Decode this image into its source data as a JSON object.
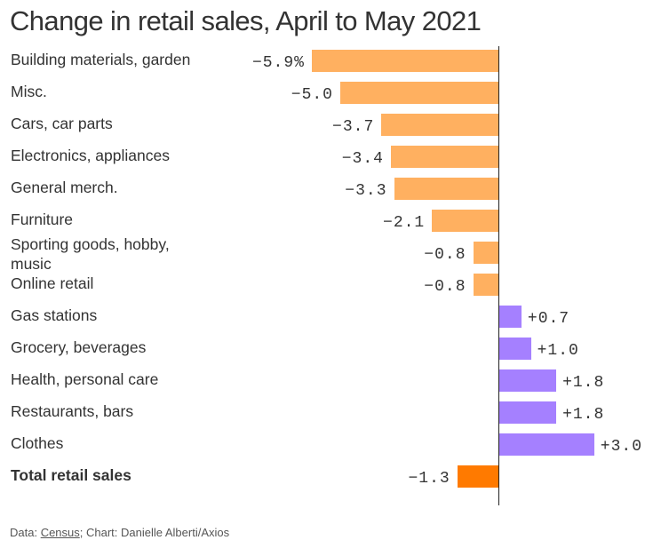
{
  "chart_data": {
    "type": "bar",
    "orientation": "horizontal",
    "title": "Change in retail sales, April to May 2021",
    "categories": [
      "Building materials, garden",
      "Misc.",
      "Cars, car parts",
      "Electronics, appliances",
      "General merch.",
      "Furniture",
      "Sporting goods, hobby, music",
      "Online retail",
      "Gas stations",
      "Grocery, beverages",
      "Health, personal care",
      "Restaurants, bars",
      "Clothes",
      "Total retail sales"
    ],
    "values": [
      -5.9,
      -5.0,
      -3.7,
      -3.4,
      -3.3,
      -2.1,
      -0.8,
      -0.8,
      0.7,
      1.0,
      1.8,
      1.8,
      3.0,
      -1.3
    ],
    "value_labels": [
      "−5.9%",
      "−5.0",
      "−3.7",
      "−3.4",
      "−3.3",
      "−2.1",
      "−0.8",
      "−0.8",
      "+0.7",
      "+1.0",
      "+1.8",
      "+1.8",
      "+3.0",
      "−1.3"
    ],
    "xlabel": "",
    "ylabel": "",
    "xlim": [
      -5.9,
      3.0
    ],
    "colors": {
      "negative": "#ffb060",
      "positive": "#a580ff",
      "total": "#ff7a00"
    }
  },
  "footer": {
    "prefix": "Data: ",
    "source_link": "Census",
    "suffix": "; Chart: Danielle Alberti/Axios"
  }
}
